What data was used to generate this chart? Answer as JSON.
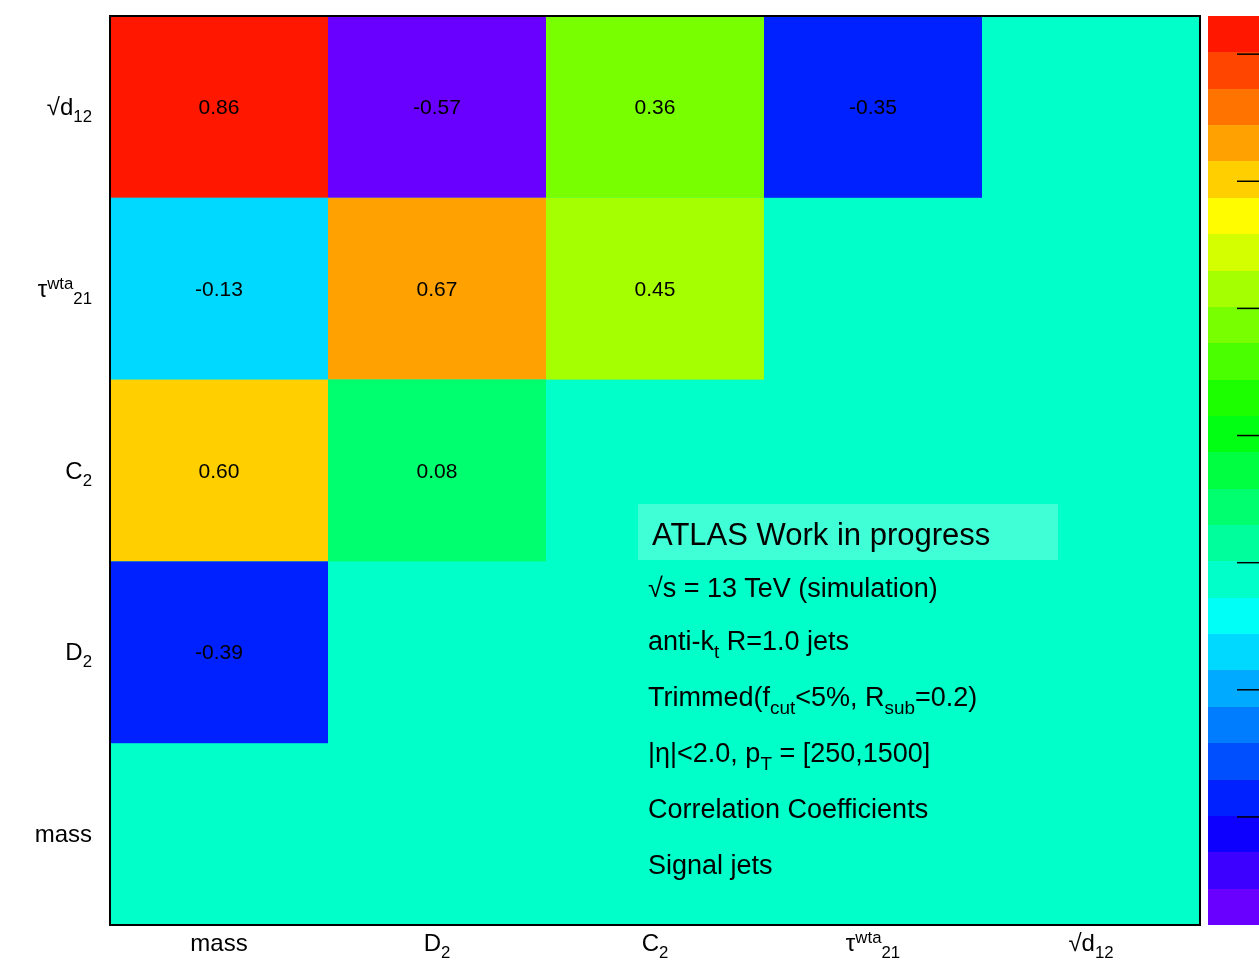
{
  "chart_data": {
    "type": "heatmap",
    "categories": [
      "mass",
      "D$_{2}$",
      "C$_{2}$",
      "τ$^{wta}$$_{21}$",
      "√d$_{12}$"
    ],
    "y_categories": [
      "√d$_{12}$",
      "τ$^{wta}$$_{21}$",
      "C$_{2}$",
      "D$_{2}$",
      "mass"
    ],
    "cells": [
      [
        0.86,
        -0.57,
        0.36,
        -0.35,
        null
      ],
      [
        -0.13,
        0.67,
        0.45,
        null,
        null
      ],
      [
        0.6,
        0.08,
        null,
        null,
        null
      ],
      [
        -0.39,
        null,
        null,
        null,
        null
      ],
      [
        null,
        null,
        null,
        null,
        null
      ]
    ],
    "cell_labels": [
      [
        "0.86",
        "-0.57",
        "0.36",
        "-0.35",
        null
      ],
      [
        "-0.13",
        "0.67",
        "0.45",
        null,
        null
      ],
      [
        "0.60",
        "0.08",
        null,
        null,
        null
      ],
      [
        "-0.39",
        null,
        null,
        null,
        null
      ],
      [
        null,
        null,
        null,
        null,
        null
      ]
    ],
    "annotations": [
      "ATLAS Work in progress",
      "√s = 13 TeV (simulation)",
      "anti-k$_{t}$ R=1.0 jets",
      "Trimmed(f$_{cut}$<5%, R$_{sub}$=0.2)",
      "|η|<2.0, p$_{T}$ = [250,1500]",
      "Correlation Coefficients",
      "Signal jets"
    ]
  }
}
